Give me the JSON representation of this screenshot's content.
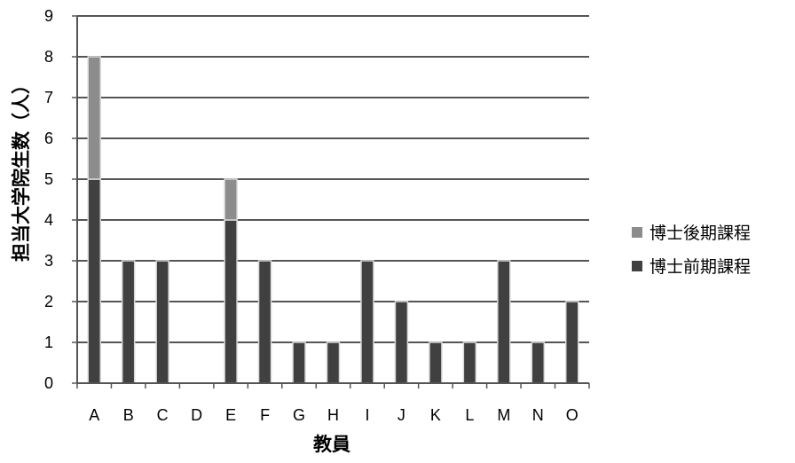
{
  "chart_data": {
    "type": "bar",
    "stacked": true,
    "categories": [
      "A",
      "B",
      "C",
      "D",
      "E",
      "F",
      "G",
      "H",
      "I",
      "J",
      "K",
      "L",
      "M",
      "N",
      "O"
    ],
    "series": [
      {
        "name": "博士前期課程",
        "values": [
          5,
          3,
          3,
          0,
          4,
          3,
          1,
          1,
          3,
          2,
          1,
          1,
          3,
          1,
          2
        ],
        "color": "#404040"
      },
      {
        "name": "博士後期課程",
        "values": [
          3,
          0,
          0,
          0,
          1,
          0,
          0,
          0,
          0,
          0,
          0,
          0,
          0,
          0,
          0
        ],
        "color": "#8c8c8c"
      }
    ],
    "legend_order": [
      "博士後期課程",
      "博士前期課程"
    ],
    "xlabel": "教員",
    "ylabel": "担当大学院生数（人）",
    "ylim": [
      0,
      9
    ],
    "yticks": [
      0,
      1,
      2,
      3,
      4,
      5,
      6,
      7,
      8,
      9
    ],
    "grid": true,
    "legend_position": "right"
  }
}
